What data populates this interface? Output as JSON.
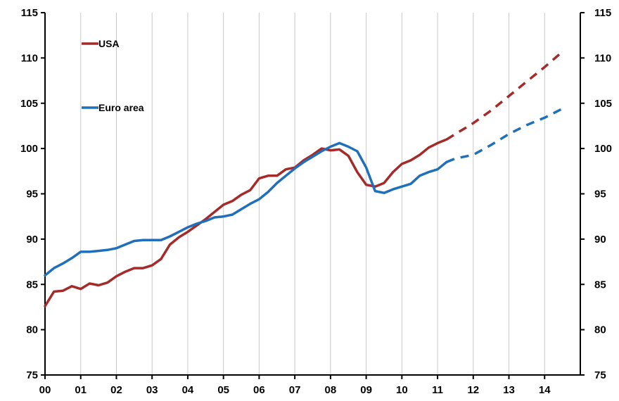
{
  "chart_data": {
    "type": "line",
    "title": "",
    "xlabel": "",
    "ylabel": "",
    "ylim": [
      75,
      115
    ],
    "yticks": [
      75,
      80,
      85,
      90,
      95,
      100,
      105,
      110,
      115
    ],
    "xlim": [
      2000,
      2015
    ],
    "xticks": [
      {
        "value": 2000,
        "label": "00"
      },
      {
        "value": 2001,
        "label": "01"
      },
      {
        "value": 2002,
        "label": "02"
      },
      {
        "value": 2003,
        "label": "03"
      },
      {
        "value": 2004,
        "label": "04"
      },
      {
        "value": 2005,
        "label": "05"
      },
      {
        "value": 2006,
        "label": "06"
      },
      {
        "value": 2007,
        "label": "07"
      },
      {
        "value": 2008,
        "label": "08"
      },
      {
        "value": 2009,
        "label": "09"
      },
      {
        "value": 2010,
        "label": "10"
      },
      {
        "value": 2011,
        "label": "11"
      },
      {
        "value": 2012,
        "label": "12"
      },
      {
        "value": 2013,
        "label": "13"
      },
      {
        "value": 2014,
        "label": "14"
      }
    ],
    "grid": "vertical",
    "dual_y_axis": true,
    "legend": "top-left",
    "series": [
      {
        "name": "USA",
        "color": "#a52a2a",
        "actual": {
          "x": [
            2000.0,
            2000.25,
            2000.5,
            2000.75,
            2001.0,
            2001.25,
            2001.5,
            2001.75,
            2002.0,
            2002.25,
            2002.5,
            2002.75,
            2003.0,
            2003.25,
            2003.5,
            2003.75,
            2004.0,
            2004.25,
            2004.5,
            2004.75,
            2005.0,
            2005.25,
            2005.5,
            2005.75,
            2006.0,
            2006.25,
            2006.5,
            2006.75,
            2007.0,
            2007.25,
            2007.5,
            2007.75,
            2008.0,
            2008.25,
            2008.5,
            2008.75,
            2009.0,
            2009.25,
            2009.5,
            2009.75,
            2010.0,
            2010.25,
            2010.5,
            2010.75,
            2011.0,
            2011.25
          ],
          "y": [
            82.6,
            84.2,
            84.3,
            84.8,
            84.5,
            85.1,
            84.9,
            85.2,
            85.9,
            86.4,
            86.8,
            86.8,
            87.1,
            87.8,
            89.4,
            90.2,
            90.8,
            91.5,
            92.2,
            93.0,
            93.8,
            94.2,
            94.9,
            95.4,
            96.7,
            97.0,
            97.0,
            97.7,
            97.9,
            98.7,
            99.3,
            100.0,
            99.8,
            99.9,
            99.2,
            97.4,
            96.0,
            95.8,
            96.2,
            97.4,
            98.3,
            98.7,
            99.3,
            100.1,
            100.6,
            101.0
          ]
        },
        "projection": {
          "x": [
            2011.25,
            2011.5,
            2012.0,
            2012.5,
            2013.0,
            2013.5,
            2014.0,
            2014.5
          ],
          "y": [
            101.0,
            101.6,
            102.8,
            104.2,
            105.8,
            107.4,
            109.0,
            110.7
          ]
        }
      },
      {
        "name": "Euro area",
        "color": "#1f6fba",
        "actual": {
          "x": [
            2000.0,
            2000.25,
            2000.5,
            2000.75,
            2001.0,
            2001.25,
            2001.5,
            2001.75,
            2002.0,
            2002.25,
            2002.5,
            2002.75,
            2003.0,
            2003.25,
            2003.5,
            2003.75,
            2004.0,
            2004.25,
            2004.5,
            2004.75,
            2005.0,
            2005.25,
            2005.5,
            2005.75,
            2006.0,
            2006.25,
            2006.5,
            2006.75,
            2007.0,
            2007.25,
            2007.5,
            2007.75,
            2008.0,
            2008.25,
            2008.5,
            2008.75,
            2009.0,
            2009.25,
            2009.5,
            2009.75,
            2010.0,
            2010.25,
            2010.5,
            2010.75,
            2011.0,
            2011.25
          ],
          "y": [
            86.0,
            86.8,
            87.3,
            87.9,
            88.6,
            88.6,
            88.7,
            88.8,
            89.0,
            89.4,
            89.8,
            89.9,
            89.9,
            89.9,
            90.3,
            90.8,
            91.3,
            91.7,
            92.0,
            92.4,
            92.5,
            92.7,
            93.3,
            93.9,
            94.4,
            95.2,
            96.2,
            97.0,
            97.8,
            98.5,
            99.1,
            99.7,
            100.2,
            100.6,
            100.2,
            99.7,
            97.9,
            95.3,
            95.1,
            95.5,
            95.8,
            96.1,
            97.0,
            97.4,
            97.7,
            98.5
          ]
        },
        "projection": {
          "x": [
            2011.25,
            2011.5,
            2012.0,
            2012.5,
            2013.0,
            2013.5,
            2014.0,
            2014.5
          ],
          "y": [
            98.5,
            98.9,
            99.3,
            100.4,
            101.6,
            102.6,
            103.4,
            104.4
          ]
        }
      }
    ]
  }
}
